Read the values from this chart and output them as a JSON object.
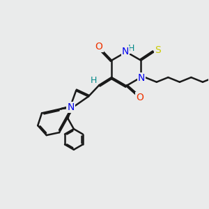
{
  "bg_color": "#eaebeb",
  "bond_color": "#1a1a1a",
  "bond_width": 1.8,
  "atom_colors": {
    "N": "#0000ee",
    "O": "#ee3300",
    "S": "#cccc00",
    "H_label": "#008888",
    "C": "#1a1a1a"
  }
}
